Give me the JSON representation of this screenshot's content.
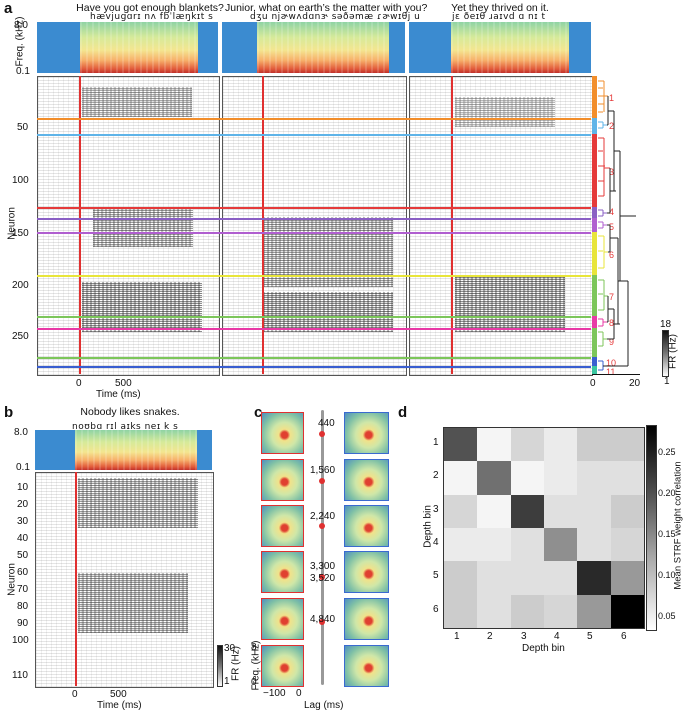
{
  "panels": {
    "a": {
      "letter": "a",
      "sentences": [
        {
          "title": "Have you got enough blankets?",
          "ipa": "hævjugɑrɪ nʌ fbˈlæŋkɪt s"
        },
        {
          "title": "Junior, what on earth’s the matter with you?",
          "ipa": "dʒu njɚwʌdɑnɝ səðəmæ ɾɚwɪθj u"
        },
        {
          "title": "Yet they thrived on it.",
          "ipa": "jɛ ðeɪθ ɹaɪvd ɑ nɪ t"
        }
      ],
      "freq_label": "Freq. (kHz)",
      "freq_ticks": [
        "8.0",
        "0.1"
      ],
      "neuron_label": "Neuron",
      "neuron_ticks": [
        "50",
        "100",
        "150",
        "200",
        "250"
      ],
      "time_label": "Time (ms)",
      "time_ticks": [
        "0",
        "500"
      ],
      "cluster_labels": [
        "1",
        "2",
        "3",
        "4",
        "5",
        "6",
        "7",
        "8",
        "9",
        "10",
        "11"
      ],
      "cluster_colors": [
        "#f28e2b",
        "#5fb4e8",
        "#e53a3a",
        "#8a5fc4",
        "#b05fd0",
        "#e8e53a",
        "#7cc65a",
        "#e83aa6",
        "#7cc65a",
        "#3a5fd0",
        "#3ac6a0"
      ],
      "dendro_ticks": [
        "0",
        "20"
      ],
      "colorbar": {
        "max": "18",
        "min": "1",
        "label": "FR (Hz)"
      }
    },
    "b": {
      "letter": "b",
      "title": "Nobody likes snakes.",
      "ipa": "noʊbɑ rɪl aɪks neɪ k s",
      "freq_ticks": [
        "8.0",
        "0.1"
      ],
      "neuron_label": "Neuron",
      "neuron_ticks": [
        "10",
        "20",
        "30",
        "40",
        "50",
        "60",
        "70",
        "80",
        "90",
        "100",
        "110"
      ],
      "time_label": "Time (ms)",
      "time_ticks": [
        "0",
        "500"
      ],
      "colorbar": {
        "max": "30",
        "min": "1",
        "label": "FR (Hz)"
      }
    },
    "c": {
      "letter": "c",
      "depths": [
        "440",
        "1,560",
        "2,240",
        "3,300",
        "3,520",
        "4,840"
      ],
      "freq_label": "Freq. (kHz)",
      "freq_ticks": [
        "8",
        "0"
      ],
      "lag_label": "Lag (ms)",
      "lag_ticks": [
        "−100",
        "0"
      ]
    },
    "d": {
      "letter": "d",
      "xlabel": "Depth bin",
      "ylabel": "Depth bin",
      "ticks": [
        "1",
        "2",
        "3",
        "4",
        "5",
        "6"
      ],
      "colorbar_label": "Mean STRF weight correlation",
      "colorbar_ticks": [
        "0.25",
        "0.20",
        "0.15",
        "0.10",
        "0.05"
      ]
    }
  },
  "chart_data": {
    "type": "heatmap",
    "title": "",
    "xlabel": "Depth bin",
    "ylabel": "Depth bin",
    "x": [
      "1",
      "2",
      "3",
      "4",
      "5",
      "6"
    ],
    "y": [
      "1",
      "2",
      "3",
      "4",
      "5",
      "6"
    ],
    "colorbar_label": "Mean STRF weight correlation",
    "zlim": [
      0.03,
      0.28
    ],
    "values": [
      [
        0.2,
        0.04,
        0.07,
        0.05,
        0.08,
        0.08
      ],
      [
        0.04,
        0.17,
        0.04,
        0.05,
        0.06,
        0.06
      ],
      [
        0.07,
        0.04,
        0.22,
        0.06,
        0.06,
        0.08
      ],
      [
        0.05,
        0.05,
        0.06,
        0.14,
        0.06,
        0.07
      ],
      [
        0.08,
        0.06,
        0.06,
        0.06,
        0.24,
        0.13
      ],
      [
        0.08,
        0.06,
        0.08,
        0.07,
        0.13,
        0.28
      ]
    ]
  }
}
